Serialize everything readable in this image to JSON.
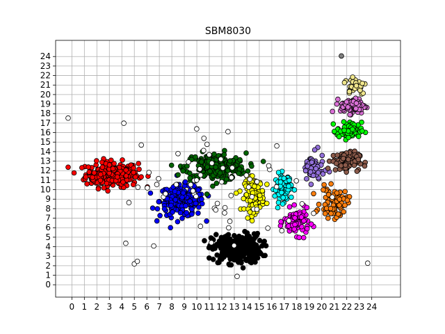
{
  "chart_data": {
    "type": "scatter",
    "title": "SBM8030",
    "xlabel": "",
    "ylabel": "",
    "xlim": [
      -1.3,
      26.3
    ],
    "ylim": [
      -1.3,
      25.7
    ],
    "xticks": [
      0,
      1,
      2,
      3,
      4,
      5,
      6,
      7,
      8,
      9,
      10,
      11,
      12,
      13,
      14,
      15,
      16,
      17,
      18,
      19,
      20,
      21,
      22,
      23,
      24
    ],
    "yticks": [
      0,
      1,
      2,
      3,
      4,
      5,
      6,
      7,
      8,
      9,
      10,
      11,
      12,
      13,
      14,
      15,
      16,
      17,
      18,
      19,
      20,
      21,
      22,
      23,
      24
    ],
    "grid": true,
    "legend": "none",
    "clusters": [
      {
        "color": "#ff0000",
        "center": [
          3.2,
          11.6
        ],
        "spread": [
          1.9,
          1.2
        ],
        "count": 260
      },
      {
        "color": "#0000ff",
        "center": [
          8.8,
          8.8
        ],
        "spread": [
          1.6,
          1.5
        ],
        "count": 220
      },
      {
        "color": "#006400",
        "center": [
          11.5,
          12.4
        ],
        "spread": [
          2.2,
          1.3
        ],
        "count": 230
      },
      {
        "color": "#000000",
        "center": [
          13.2,
          3.8
        ],
        "spread": [
          1.8,
          1.4
        ],
        "count": 260
      },
      {
        "color": "#ffff00",
        "center": [
          14.6,
          9.5
        ],
        "spread": [
          0.7,
          1.6
        ],
        "count": 140
      },
      {
        "color": "#00ffff",
        "center": [
          16.9,
          10.2
        ],
        "spread": [
          0.6,
          1.3
        ],
        "count": 90
      },
      {
        "color": "#ff00ff",
        "center": [
          18.0,
          6.6
        ],
        "spread": [
          0.9,
          1.2
        ],
        "count": 90
      },
      {
        "color": "#9370db",
        "center": [
          19.3,
          12.2
        ],
        "spread": [
          0.8,
          1.4
        ],
        "count": 60
      },
      {
        "color": "#ff7f0e",
        "center": [
          21.0,
          8.6
        ],
        "spread": [
          1.0,
          1.4
        ],
        "count": 80
      },
      {
        "color": "#8b5a4a",
        "center": [
          21.9,
          13.0
        ],
        "spread": [
          1.0,
          0.9
        ],
        "count": 110
      },
      {
        "color": "#00ff00",
        "center": [
          22.2,
          16.2
        ],
        "spread": [
          0.9,
          0.8
        ],
        "count": 80
      },
      {
        "color": "#da70d6",
        "center": [
          22.5,
          18.8
        ],
        "spread": [
          0.9,
          0.7
        ],
        "count": 90
      },
      {
        "color": "#f0e68c",
        "center": [
          22.7,
          21.0
        ],
        "spread": [
          0.8,
          0.9
        ],
        "count": 40
      },
      {
        "color": "#ffffff",
        "center": [
          12.0,
          10.0
        ],
        "spread": [
          7.5,
          6.5
        ],
        "count": 70
      },
      {
        "color": "#808080",
        "center": [
          21.6,
          24.1
        ],
        "spread": [
          0.05,
          0.05
        ],
        "count": 1
      }
    ]
  }
}
